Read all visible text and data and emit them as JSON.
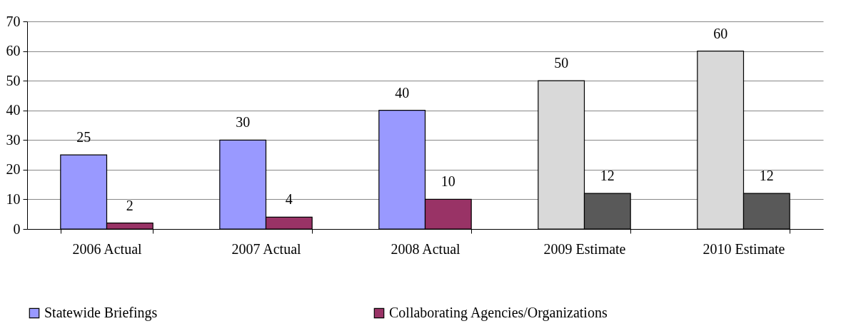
{
  "chart_data": {
    "type": "bar",
    "categories": [
      "2006 Actual",
      "2007 Actual",
      "2008 Actual",
      "2009 Estimate",
      "2010 Estimate"
    ],
    "series": [
      {
        "name": "Statewide Briefings",
        "color": "#9999ff",
        "colors": [
          "#9999ff",
          "#9999ff",
          "#9999ff",
          "#d9d9d9",
          "#d9d9d9"
        ],
        "values": [
          25,
          30,
          40,
          50,
          60
        ]
      },
      {
        "name": "Collaborating Agencies/Organizations",
        "color": "#993366",
        "colors": [
          "#993366",
          "#993366",
          "#993366",
          "#595959",
          "#595959"
        ],
        "values": [
          2,
          4,
          10,
          12,
          12
        ]
      }
    ],
    "ylim": [
      0,
      70
    ],
    "yticks": [
      0,
      10,
      20,
      30,
      40,
      50,
      60,
      70
    ],
    "grid": "y",
    "legend": "bottom",
    "data_labels": true
  }
}
